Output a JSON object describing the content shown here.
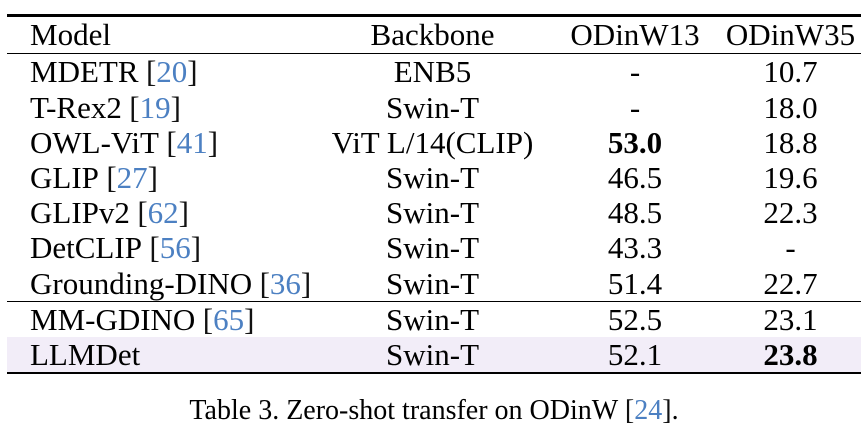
{
  "colors": {
    "cite_blue": "#4c80c2",
    "highlight_lavender": "#f2edf8"
  },
  "table": {
    "columns": [
      {
        "label": "Model"
      },
      {
        "label": "Backbone"
      },
      {
        "label": "ODinW13"
      },
      {
        "label": "ODinW35"
      }
    ],
    "rows": [
      {
        "model": "MDETR",
        "cite": "20",
        "backbone": "ENB5",
        "odinw13": "-",
        "odinw13_bold": false,
        "odinw35": "10.7",
        "odinw35_bold": false,
        "highlighted": false,
        "rule_before": false
      },
      {
        "model": "T-Rex2",
        "cite": "19",
        "backbone": "Swin-T",
        "odinw13": "-",
        "odinw13_bold": false,
        "odinw35": "18.0",
        "odinw35_bold": false,
        "highlighted": false,
        "rule_before": false
      },
      {
        "model": "OWL-ViT",
        "cite": "41",
        "backbone": "ViT L/14(CLIP)",
        "odinw13": "53.0",
        "odinw13_bold": true,
        "odinw35": "18.8",
        "odinw35_bold": false,
        "highlighted": false,
        "rule_before": false
      },
      {
        "model": "GLIP",
        "cite": "27",
        "backbone": "Swin-T",
        "odinw13": "46.5",
        "odinw13_bold": false,
        "odinw35": "19.6",
        "odinw35_bold": false,
        "highlighted": false,
        "rule_before": false
      },
      {
        "model": "GLIPv2",
        "cite": "62",
        "backbone": "Swin-T",
        "odinw13": "48.5",
        "odinw13_bold": false,
        "odinw35": "22.3",
        "odinw35_bold": false,
        "highlighted": false,
        "rule_before": false
      },
      {
        "model": "DetCLIP",
        "cite": "56",
        "backbone": "Swin-T",
        "odinw13": "43.3",
        "odinw13_bold": false,
        "odinw35": "-",
        "odinw35_bold": false,
        "highlighted": false,
        "rule_before": false
      },
      {
        "model": "Grounding-DINO",
        "cite": "36",
        "backbone": "Swin-T",
        "odinw13": "51.4",
        "odinw13_bold": false,
        "odinw35": "22.7",
        "odinw35_bold": false,
        "highlighted": false,
        "rule_before": false
      },
      {
        "model": "MM-GDINO",
        "cite": "65",
        "backbone": "Swin-T",
        "odinw13": "52.5",
        "odinw13_bold": false,
        "odinw35": "23.1",
        "odinw35_bold": false,
        "highlighted": false,
        "rule_before": true
      },
      {
        "model": "LLMDet",
        "cite": null,
        "backbone": "Swin-T",
        "odinw13": "52.1",
        "odinw13_bold": false,
        "odinw35": "23.8",
        "odinw35_bold": true,
        "highlighted": true,
        "rule_before": false
      }
    ]
  },
  "caption": {
    "prefix": "Table 3. Zero-shot transfer on ODinW",
    "cite": "24",
    "suffix": "."
  }
}
